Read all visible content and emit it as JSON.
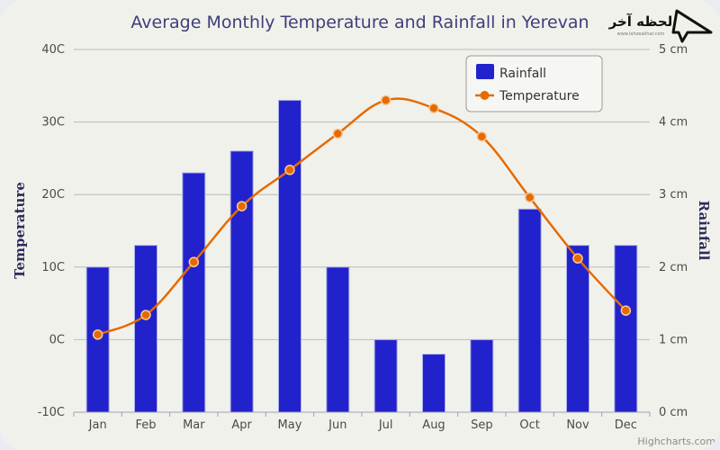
{
  "chart_data": {
    "type": "bar",
    "title": "Average Monthly Temperature and Rainfall in Yerevan",
    "categories": [
      "Jan",
      "Feb",
      "Mar",
      "Apr",
      "May",
      "Jun",
      "Jul",
      "Aug",
      "Sep",
      "Oct",
      "Nov",
      "Dec"
    ],
    "series": [
      {
        "name": "Rainfall",
        "type": "bar",
        "axis": "right",
        "unit": "cm",
        "color": "#2222cc",
        "values": [
          2.0,
          2.3,
          3.3,
          3.6,
          4.3,
          2.0,
          1.0,
          0.8,
          1.0,
          2.8,
          2.3,
          2.3
        ]
      },
      {
        "name": "Temperature",
        "type": "line",
        "axis": "left",
        "unit": "C",
        "color": "#e56b00",
        "smooth": true,
        "values": [
          0.7,
          3.4,
          10.7,
          18.4,
          23.4,
          28.4,
          33.0,
          31.9,
          28.0,
          19.6,
          11.2,
          4.0
        ]
      }
    ],
    "y_left": {
      "label": "Temperature",
      "range": [
        -10,
        40
      ],
      "ticks": [
        -10,
        0,
        10,
        20,
        30,
        40
      ],
      "tick_labels": [
        "-10C",
        "0C",
        "10C",
        "20C",
        "30C",
        "40C"
      ]
    },
    "y_right": {
      "label": "Rainfall",
      "range": [
        0,
        5
      ],
      "ticks": [
        0,
        1,
        2,
        3,
        4,
        5
      ],
      "tick_labels": [
        "0 cm",
        "1 cm",
        "2 cm",
        "3 cm",
        "4 cm",
        "5 cm"
      ]
    },
    "grid": true,
    "legend": {
      "position": "top-right",
      "entries": [
        "Rainfall",
        "Temperature"
      ]
    },
    "credit": "Highcharts.com"
  },
  "watermark": {
    "text": "لحظه آخر",
    "url_text": "www.lahzeakhar.com"
  },
  "colors": {
    "background": "#f1f1ec",
    "bar": "#2222cc",
    "line": "#e56b00",
    "title": "#3d3f7a",
    "grid": "#b8b8b8"
  }
}
